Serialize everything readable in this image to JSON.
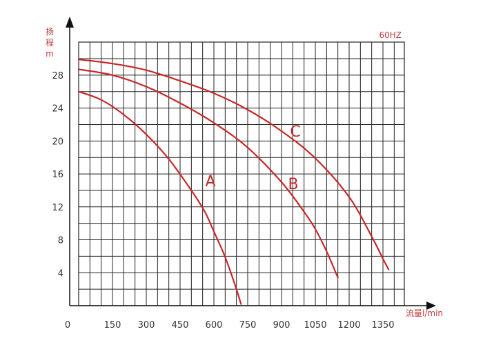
{
  "chart_data": {
    "type": "line",
    "title": "",
    "annotation": "60HZ",
    "ylabel_chars": [
      "扬",
      "程"
    ],
    "ylabel_unit": "m",
    "xlabel": "流量l/min",
    "x_ticks": [
      "0",
      "150",
      "300",
      "450",
      "600",
      "750",
      "900",
      "1050",
      "1200",
      "1350"
    ],
    "y_ticks": [
      "4",
      "8",
      "12",
      "16",
      "20",
      "24",
      "28"
    ],
    "xlim": [
      0,
      1400
    ],
    "ylim": [
      0,
      30
    ],
    "grid": true,
    "series": [
      {
        "name": "A",
        "color": "#c82828",
        "x": [
          0,
          100,
          200,
          300,
          400,
          500,
          560,
          600,
          650,
          700,
          720
        ],
        "y": [
          26,
          25,
          23.2,
          20.8,
          17.8,
          14,
          11.4,
          9,
          5.9,
          2,
          0.2
        ]
      },
      {
        "name": "B",
        "color": "#c82828",
        "x": [
          0,
          150,
          300,
          450,
          600,
          750,
          900,
          1000,
          1050,
          1100,
          1150
        ],
        "y": [
          28.7,
          28,
          26.6,
          24.6,
          22.2,
          19.2,
          15,
          11.4,
          9.3,
          6.6,
          3.4
        ]
      },
      {
        "name": "C",
        "color": "#c82828",
        "x": [
          0,
          150,
          300,
          450,
          600,
          750,
          900,
          1050,
          1200,
          1300,
          1350,
          1375
        ],
        "y": [
          29.9,
          29.4,
          28.6,
          27.3,
          25.8,
          23.8,
          21.2,
          17.9,
          13.2,
          8.4,
          5.7,
          4.4
        ]
      }
    ]
  }
}
